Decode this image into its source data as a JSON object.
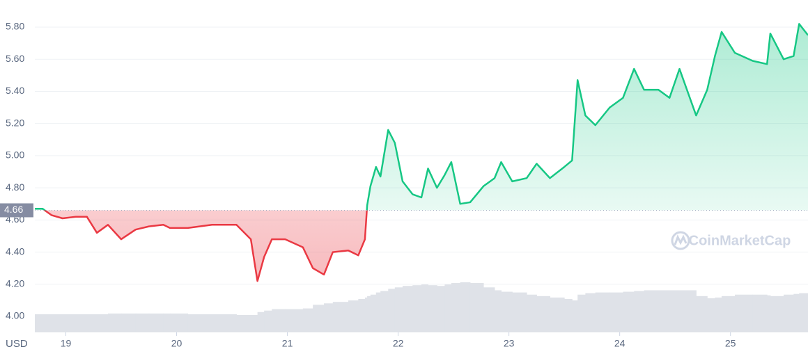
{
  "chart_data": {
    "type": "line",
    "currency_label": "USD",
    "watermark": "CoinMarketCap",
    "baseline": 4.66,
    "up_color": "#16c784",
    "down_color": "#ea3943",
    "volume_color": "#dfe2e8",
    "xlim": [
      18.72,
      25.7
    ],
    "xticks": [
      19,
      20,
      21,
      22,
      23,
      24,
      25
    ],
    "ylim": [
      4.0,
      5.8
    ],
    "yticks": [
      {
        "value": 4.0,
        "label": "4.00"
      },
      {
        "value": 4.2,
        "label": "4.20"
      },
      {
        "value": 4.4,
        "label": "4.40"
      },
      {
        "value": 4.6,
        "label": "4.60"
      },
      {
        "value": 4.8,
        "label": "4.80"
      },
      {
        "value": 5.0,
        "label": "5.00"
      },
      {
        "value": 5.2,
        "label": "5.20"
      },
      {
        "value": 5.4,
        "label": "5.40"
      },
      {
        "value": 5.6,
        "label": "5.60"
      },
      {
        "value": 5.8,
        "label": "5.80"
      }
    ],
    "grid": true,
    "x": [
      18.72,
      18.79,
      18.87,
      18.97,
      19.09,
      19.19,
      19.28,
      19.38,
      19.5,
      19.63,
      19.75,
      19.88,
      19.94,
      20.1,
      20.32,
      20.54,
      20.67,
      20.73,
      20.79,
      20.86,
      20.98,
      21.14,
      21.23,
      21.33,
      21.41,
      21.55,
      21.64,
      21.7,
      21.72,
      21.75,
      21.8,
      21.84,
      21.91,
      21.97,
      22.04,
      22.13,
      22.21,
      22.27,
      22.35,
      22.42,
      22.48,
      22.56,
      22.65,
      22.77,
      22.87,
      22.93,
      23.03,
      23.16,
      23.25,
      23.37,
      23.5,
      23.57,
      23.62,
      23.69,
      23.78,
      23.91,
      24.03,
      24.13,
      24.22,
      24.35,
      24.45,
      24.54,
      24.69,
      24.79,
      24.86,
      24.92,
      25.04,
      25.2,
      25.33,
      25.36,
      25.48,
      25.57,
      25.62,
      25.7
    ],
    "values": [
      4.67,
      4.67,
      4.63,
      4.61,
      4.62,
      4.62,
      4.52,
      4.57,
      4.48,
      4.54,
      4.56,
      4.57,
      4.55,
      4.55,
      4.57,
      4.57,
      4.48,
      4.22,
      4.37,
      4.48,
      4.48,
      4.43,
      4.3,
      4.26,
      4.4,
      4.41,
      4.38,
      4.48,
      4.69,
      4.81,
      4.93,
      4.87,
      5.16,
      5.08,
      4.84,
      4.76,
      4.74,
      4.92,
      4.8,
      4.88,
      4.96,
      4.7,
      4.71,
      4.81,
      4.86,
      4.96,
      4.84,
      4.86,
      4.95,
      4.86,
      4.93,
      4.97,
      5.47,
      5.25,
      5.19,
      5.3,
      5.36,
      5.54,
      5.41,
      5.41,
      5.36,
      5.54,
      5.25,
      5.41,
      5.62,
      5.77,
      5.64,
      5.59,
      5.57,
      5.76,
      5.6,
      5.62,
      5.82,
      5.75
    ],
    "volume": [
      25,
      25,
      25,
      25,
      25,
      25,
      25,
      26,
      26,
      26,
      26,
      26,
      26,
      25,
      25,
      24,
      24,
      28,
      30,
      32,
      32,
      33,
      38,
      40,
      42,
      44,
      46,
      48,
      50,
      52,
      55,
      57,
      60,
      62,
      64,
      65,
      66,
      65,
      64,
      66,
      68,
      69,
      68,
      62,
      58,
      56,
      55,
      52,
      50,
      48,
      46,
      44,
      52,
      54,
      55,
      55,
      56,
      57,
      58,
      58,
      58,
      58,
      50,
      47,
      48,
      50,
      52,
      52,
      51,
      50,
      52,
      53,
      54,
      54
    ]
  }
}
